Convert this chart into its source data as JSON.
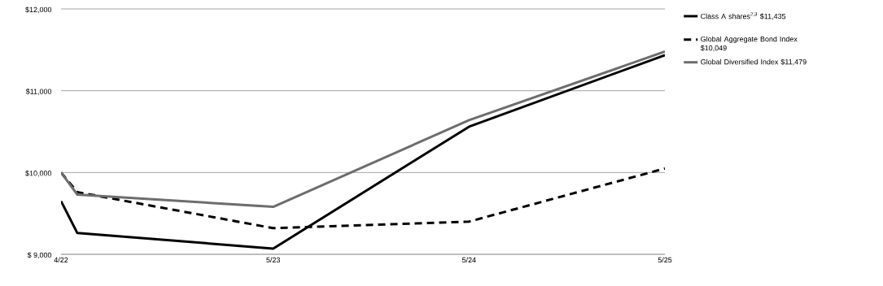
{
  "chart_data": {
    "type": "line",
    "x": [
      "2022-04",
      "2022-05",
      "2023-05",
      "2024-05",
      "2025-05"
    ],
    "xlim": [
      "2022-04",
      "2025-05"
    ],
    "xticks": [
      {
        "value": "2022-04",
        "label": "4/22"
      },
      {
        "value": "2023-05",
        "label": "5/23"
      },
      {
        "value": "2024-05",
        "label": "5/24"
      },
      {
        "value": "2025-05",
        "label": "5/25"
      }
    ],
    "ylim": [
      9000,
      12000
    ],
    "yticks": [
      {
        "value": 9000,
        "label": "$ 9,000"
      },
      {
        "value": 10000,
        "label": "$10,000"
      },
      {
        "value": 11000,
        "label": "$11,000"
      },
      {
        "value": 12000,
        "label": "$12,000"
      }
    ],
    "grid": "y",
    "legend": "right",
    "series": [
      {
        "name": "Class A shares$^{2,3}$ $11,435",
        "color": "#000000",
        "line_style": "solid",
        "values": [
          9650,
          9260,
          9070,
          10560,
          11435
        ]
      },
      {
        "name": "Global Aggregate Bond Index $10,049",
        "color": "#000000",
        "line_style": "dashed",
        "values": [
          10000,
          9760,
          9320,
          9400,
          10049
        ]
      },
      {
        "name": "Global Diversified Index $11,479",
        "color": "#6d6d6d",
        "line_style": "solid",
        "values": [
          10000,
          9730,
          9580,
          10640,
          11479
        ]
      }
    ]
  }
}
